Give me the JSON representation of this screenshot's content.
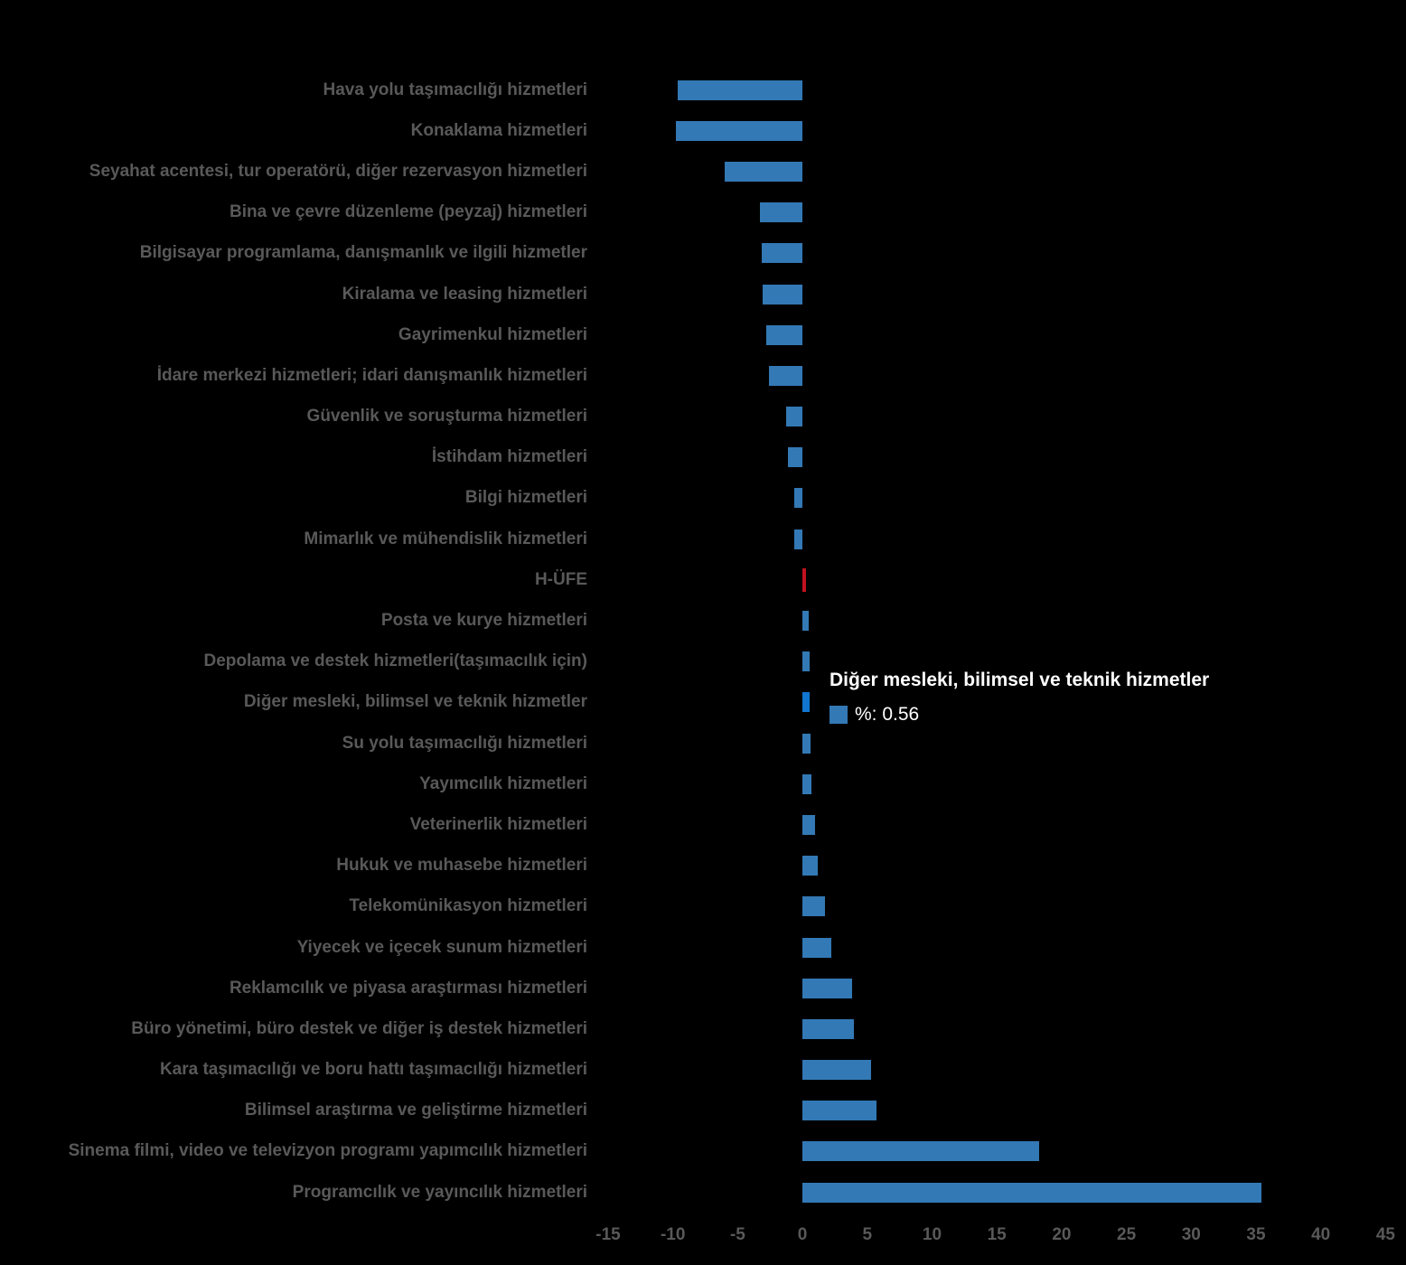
{
  "chart_data": {
    "type": "bar",
    "orientation": "horizontal",
    "title": "",
    "xlabel": "",
    "ylabel": "",
    "unit": "%",
    "xlim": [
      -15,
      45
    ],
    "grid": false,
    "x_ticks": [
      "-15",
      "-10",
      "-5",
      "0",
      "5",
      "10",
      "15",
      "20",
      "25",
      "30",
      "35",
      "40",
      "45"
    ],
    "categories": [
      "Hava yolu taşımacılığı hizmetleri",
      "Konaklama hizmetleri",
      "Seyahat acentesi, tur operatörü, diğer rezervasyon hizmetleri",
      "Bina ve çevre düzenleme (peyzaj) hizmetleri",
      "Bilgisayar programlama, danışmanlık ve ilgili hizmetler",
      "Kiralama ve leasing hizmetleri",
      "Gayrimenkul hizmetleri",
      "İdare merkezi hizmetleri; idari danışmanlık hizmetleri",
      "Güvenlik ve soruşturma hizmetleri",
      "İstihdam hizmetleri",
      "Bilgi hizmetleri",
      "Mimarlık ve mühendislik hizmetleri",
      "H-ÜFE",
      "Posta ve kurye hizmetleri",
      "Depolama ve destek hizmetleri(taşımacılık için)",
      "Diğer mesleki, bilimsel ve teknik hizmetler",
      "Su yolu taşımacılığı hizmetleri",
      "Yayımcılık hizmetleri",
      "Veterinerlik hizmetleri",
      "Hukuk ve muhasebe hizmetleri",
      "Telekomünikasyon hizmetleri",
      "Yiyecek ve içecek sunum hizmetleri",
      "Reklamcılık ve piyasa araştırması hizmetleri",
      "Büro yönetimi, büro destek ve diğer iş destek hizmetleri",
      "Kara taşımacılığı ve boru hattı taşımacılığı hizmetleri",
      "Bilimsel araştırma ve geliştirme hizmetleri",
      "Sinema filmi, video ve televizyon programı yapımcılık hizmetleri",
      "Programcılık ve yayıncılık hizmetleri"
    ],
    "values": [
      -9.62,
      -9.74,
      -6.01,
      -3.26,
      -3.14,
      -3.09,
      -2.81,
      -2.61,
      -1.29,
      -1.1,
      -0.66,
      -0.61,
      0.25,
      0.45,
      0.52,
      0.56,
      0.61,
      0.7,
      0.99,
      1.19,
      1.71,
      2.25,
      3.85,
      3.97,
      5.28,
      5.7,
      18.26,
      35.43
    ],
    "highlight_index": 15,
    "hufe_index": 12,
    "colors": {
      "bar": "#3379b5",
      "bar_highlight": "#1076d2",
      "hufe_bar": "#c0111f",
      "axis_text": "#595959",
      "label_text": "#595959",
      "background": "#000000"
    }
  },
  "tooltip": {
    "title": "Diğer mesleki, bilimsel ve teknik hizmetler",
    "value_label": "%: 0.56",
    "value": "0.56",
    "swatch_color": "#3379b5",
    "text_color": "#ffffff"
  }
}
